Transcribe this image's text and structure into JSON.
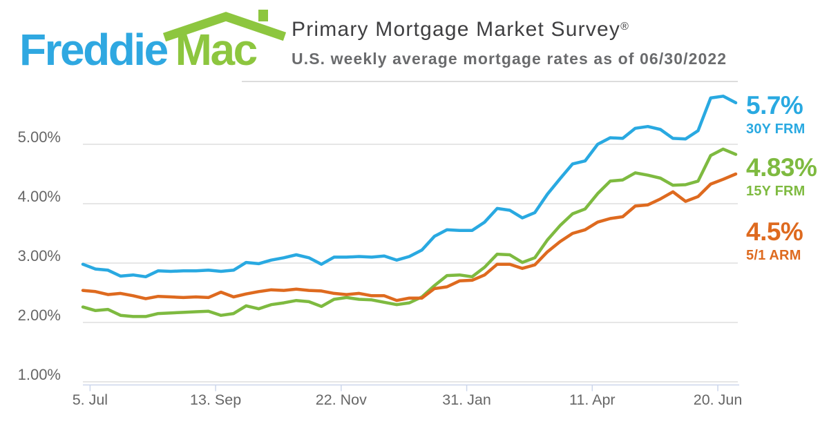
{
  "logo": {
    "word1": "Freddie",
    "word2": "Mac",
    "blue": "#2FA8E1",
    "green": "#8DC63F",
    "roof_icon": "house-roof-with-chimney"
  },
  "header": {
    "title": "Primary Mortgage Market Survey",
    "registered_mark": "®",
    "subtitle": "U.S. weekly average mortgage rates as of 06/30/2022"
  },
  "chart_data": {
    "type": "line",
    "title": "Primary Mortgage Market Survey®",
    "subtitle": "U.S. weekly average mortgage rates as of 06/30/2022",
    "as_of_date": "06/30/2022",
    "x_start_date": "2021-07-01",
    "x_end_date": "2022-06-30",
    "point_interval": "weekly",
    "total_days": 364,
    "grid": "horizontal-only",
    "ylim": [
      0.95,
      5.92
    ],
    "colors": {
      "gridline": "#E6E6E6",
      "axis_line": "#CCD6EB",
      "axis_text": "#666666"
    },
    "y_ticks": [
      {
        "label": "5.00%",
        "value": 5
      },
      {
        "label": "4.00%",
        "value": 4
      },
      {
        "label": "3.00%",
        "value": 3
      },
      {
        "label": "2.00%",
        "value": 2
      },
      {
        "label": "1.00%",
        "value": 1
      }
    ],
    "x_ticks": [
      {
        "label": "5. Jul",
        "day_offset": 4
      },
      {
        "label": "13. Sep",
        "day_offset": 74
      },
      {
        "label": "22. Nov",
        "day_offset": 144
      },
      {
        "label": "31. Jan",
        "day_offset": 214
      },
      {
        "label": "11. Apr",
        "day_offset": 284
      },
      {
        "label": "20. Jun",
        "day_offset": 354
      }
    ],
    "legend_position": "right-of-plot",
    "series": [
      {
        "name": "30Y FRM",
        "final_value_label": "5.7%",
        "final_value": 5.7,
        "color": "#29A9E1",
        "values": [
          2.98,
          2.9,
          2.88,
          2.78,
          2.8,
          2.77,
          2.87,
          2.86,
          2.87,
          2.87,
          2.88,
          2.86,
          2.88,
          3.01,
          2.99,
          3.05,
          3.09,
          3.14,
          3.09,
          2.98,
          3.1,
          3.1,
          3.11,
          3.1,
          3.12,
          3.05,
          3.11,
          3.22,
          3.45,
          3.56,
          3.55,
          3.55,
          3.69,
          3.92,
          3.89,
          3.76,
          3.85,
          4.16,
          4.42,
          4.67,
          4.72,
          5.0,
          5.11,
          5.1,
          5.27,
          5.3,
          5.25,
          5.1,
          5.09,
          5.23,
          5.78,
          5.81,
          5.7
        ]
      },
      {
        "name": "15Y FRM",
        "final_value_label": "4.83%",
        "final_value": 4.83,
        "color": "#7EBA40",
        "values": [
          2.26,
          2.2,
          2.22,
          2.12,
          2.1,
          2.1,
          2.15,
          2.16,
          2.17,
          2.18,
          2.19,
          2.12,
          2.15,
          2.28,
          2.23,
          2.3,
          2.33,
          2.37,
          2.35,
          2.27,
          2.39,
          2.42,
          2.39,
          2.38,
          2.34,
          2.3,
          2.33,
          2.43,
          2.62,
          2.79,
          2.8,
          2.77,
          2.93,
          3.15,
          3.14,
          3.01,
          3.09,
          3.39,
          3.63,
          3.83,
          3.91,
          4.17,
          4.38,
          4.4,
          4.52,
          4.48,
          4.43,
          4.31,
          4.32,
          4.38,
          4.81,
          4.92,
          4.83
        ]
      },
      {
        "name": "5/1 ARM",
        "final_value_label": "4.5%",
        "final_value": 4.5,
        "color": "#DE6A1F",
        "values": [
          2.54,
          2.52,
          2.47,
          2.49,
          2.45,
          2.4,
          2.44,
          2.43,
          2.42,
          2.43,
          2.42,
          2.51,
          2.43,
          2.48,
          2.52,
          2.55,
          2.54,
          2.56,
          2.54,
          2.53,
          2.49,
          2.47,
          2.49,
          2.45,
          2.45,
          2.37,
          2.41,
          2.41,
          2.57,
          2.6,
          2.7,
          2.71,
          2.8,
          2.98,
          2.98,
          2.91,
          2.97,
          3.19,
          3.36,
          3.5,
          3.56,
          3.69,
          3.75,
          3.78,
          3.96,
          3.98,
          4.08,
          4.2,
          4.04,
          4.12,
          4.33,
          4.41,
          4.5
        ]
      }
    ]
  }
}
